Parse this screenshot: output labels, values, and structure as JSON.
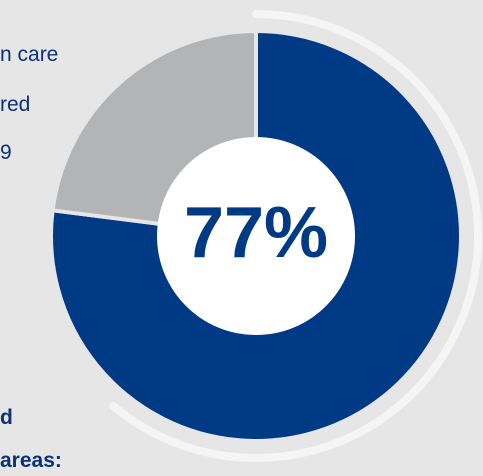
{
  "left_text": {
    "line1": "n care",
    "line2": "red",
    "line3": "9",
    "line4": "d",
    "line5": "areas:"
  },
  "chart_data": {
    "type": "pie",
    "categories": [
      "",
      ""
    ],
    "values": [
      77,
      23
    ],
    "center_label": "77%",
    "colors": {
      "primary": "#003a85",
      "secondary": "#b3b4b6",
      "background": "#e6e6e6",
      "outer_ring": "#f5f5f5",
      "label": "#003a85"
    }
  }
}
